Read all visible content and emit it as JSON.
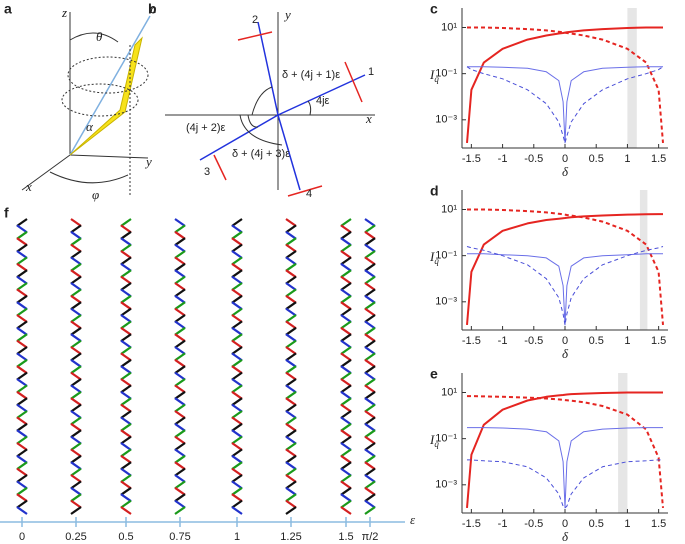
{
  "figure": {
    "panel_a": {
      "label": "a",
      "z": "z",
      "n": "n",
      "theta": "θ",
      "alpha": "α",
      "y": "y",
      "x": "x",
      "phi": "φ"
    },
    "panel_b": {
      "label": "b",
      "y": "y",
      "x": "x",
      "v1": "1",
      "v2": "2",
      "v3": "3",
      "v4": "4",
      "ang1": "δ + (4j + 1)ε",
      "ang0": "4jε",
      "ang2": "(4j + 2)ε",
      "ang3": "δ + (4j + 3)ε"
    },
    "panel_f": {
      "label": "f",
      "axis_label": "ε",
      "ticks": [
        "0",
        "0.25",
        "0.5",
        "0.75",
        "1",
        "1.25",
        "1.5",
        "π/2"
      ]
    }
  },
  "chart_data": [
    {
      "type": "line",
      "label": "c",
      "ylabel": {
        "main": "I",
        "sub": "q"
      },
      "xlabel": "δ",
      "log_y": true,
      "xlim": [
        -1.65,
        1.65
      ],
      "ylim": [
        6e-05,
        70
      ],
      "xticks": [
        -1.5,
        -1,
        -0.5,
        0,
        0.5,
        1,
        1.5
      ],
      "yticks": [
        {
          "value": 10,
          "label": "10¹"
        },
        {
          "value": 0.1,
          "label": "10⁻¹"
        },
        {
          "value": 0.001,
          "label": "10⁻³"
        }
      ],
      "shade": [
        1.0,
        1.15
      ],
      "x": [
        -1.57,
        -1.5,
        -1.3,
        -1.0,
        -0.6,
        -0.3,
        -0.1,
        -0.03,
        0,
        0.03,
        0.1,
        0.3,
        0.6,
        1.0,
        1.3,
        1.5,
        1.57
      ],
      "series": [
        {
          "color": "#e52521",
          "dash": false,
          "values": [
            0.0001,
            0.02,
            0.3,
            1.2,
            3,
            4.5,
            5.5,
            5.8,
            6,
            6.2,
            6.5,
            7.5,
            8.5,
            9.5,
            10,
            10,
            10
          ]
        },
        {
          "color": "#e52521",
          "dash": true,
          "values": [
            10,
            10,
            10,
            9.5,
            8.5,
            7.5,
            6.5,
            6.2,
            6,
            5.8,
            5.5,
            4.5,
            3,
            1.2,
            0.3,
            0.02,
            0.0001
          ]
        },
        {
          "color": "#6a6fe8",
          "dash": false,
          "values": [
            0.2,
            0.2,
            0.2,
            0.19,
            0.17,
            0.12,
            0.05,
            0.006,
            0.0001,
            0.006,
            0.05,
            0.12,
            0.17,
            0.19,
            0.2,
            0.2,
            0.2
          ]
        },
        {
          "color": "#4a4fd8",
          "dash": true,
          "values": [
            0.2,
            0.15,
            0.1,
            0.06,
            0.02,
            0.005,
            0.0008,
            0.0002,
            0.0001,
            0.0002,
            0.0008,
            0.005,
            0.02,
            0.06,
            0.1,
            0.15,
            0.2
          ]
        }
      ]
    },
    {
      "type": "line",
      "label": "d",
      "ylabel": {
        "main": "I",
        "sub": "q"
      },
      "xlabel": "δ",
      "log_y": true,
      "xlim": [
        -1.65,
        1.65
      ],
      "ylim": [
        6e-05,
        70
      ],
      "xticks": [
        -1.5,
        -1,
        -0.5,
        0,
        0.5,
        1,
        1.5
      ],
      "yticks": [
        {
          "value": 10,
          "label": "10¹"
        },
        {
          "value": 0.1,
          "label": "10⁻¹"
        },
        {
          "value": 0.001,
          "label": "10⁻³"
        }
      ],
      "shade": [
        1.2,
        1.32
      ],
      "x": [
        -1.57,
        -1.5,
        -1.3,
        -1.0,
        -0.6,
        -0.3,
        -0.1,
        -0.03,
        0,
        0.03,
        0.1,
        0.3,
        0.6,
        1.0,
        1.3,
        1.5,
        1.57
      ],
      "series": [
        {
          "color": "#e52521",
          "dash": false,
          "values": [
            0.0001,
            0.02,
            0.3,
            1.2,
            2.5,
            3.5,
            4,
            4.2,
            4.3,
            4.4,
            4.6,
            5,
            5.5,
            6,
            6.2,
            6.3,
            6.3
          ]
        },
        {
          "color": "#e52521",
          "dash": true,
          "values": [
            10,
            10,
            10,
            9.5,
            8.5,
            7.5,
            6.5,
            6.2,
            6,
            5.8,
            5.5,
            4.5,
            3,
            1.2,
            0.3,
            0.02,
            0.0001
          ]
        },
        {
          "color": "#6a6fe8",
          "dash": false,
          "values": [
            0.12,
            0.12,
            0.12,
            0.11,
            0.1,
            0.08,
            0.035,
            0.005,
            0.0001,
            0.005,
            0.035,
            0.08,
            0.1,
            0.11,
            0.12,
            0.12,
            0.12
          ]
        },
        {
          "color": "#4a4fd8",
          "dash": true,
          "values": [
            0.25,
            0.22,
            0.17,
            0.1,
            0.04,
            0.01,
            0.0015,
            0.0003,
            0.0001,
            0.0003,
            0.0015,
            0.01,
            0.04,
            0.1,
            0.17,
            0.22,
            0.25
          ]
        }
      ]
    },
    {
      "type": "line",
      "label": "e",
      "ylabel": {
        "main": "I",
        "sub": "q"
      },
      "xlabel": "δ",
      "log_y": true,
      "xlim": [
        -1.65,
        1.65
      ],
      "ylim": [
        6e-05,
        70
      ],
      "xticks": [
        -1.5,
        -1,
        -0.5,
        0,
        0.5,
        1,
        1.5
      ],
      "yticks": [
        {
          "value": 10,
          "label": "10¹"
        },
        {
          "value": 0.1,
          "label": "10⁻¹"
        },
        {
          "value": 0.001,
          "label": "10⁻³"
        }
      ],
      "shade": [
        0.85,
        1.0
      ],
      "x": [
        -1.57,
        -1.5,
        -1.3,
        -1.0,
        -0.6,
        -0.3,
        -0.1,
        -0.03,
        0,
        0.03,
        0.1,
        0.3,
        0.6,
        1.0,
        1.3,
        1.5,
        1.57
      ],
      "series": [
        {
          "color": "#e52521",
          "dash": false,
          "values": [
            0.0001,
            0.02,
            0.4,
            1.8,
            4.5,
            6.5,
            7.5,
            7.8,
            8,
            8.2,
            8.5,
            9,
            9.5,
            10,
            10,
            10,
            10
          ]
        },
        {
          "color": "#e52521",
          "dash": true,
          "values": [
            7,
            7,
            6.8,
            6.5,
            6,
            5.5,
            5,
            4.8,
            4.7,
            4.6,
            4.4,
            3.8,
            2.6,
            1.1,
            0.25,
            0.015,
            0.0001
          ]
        },
        {
          "color": "#6a6fe8",
          "dash": false,
          "values": [
            0.3,
            0.3,
            0.3,
            0.29,
            0.26,
            0.2,
            0.08,
            0.01,
            0.0001,
            0.01,
            0.08,
            0.2,
            0.26,
            0.29,
            0.3,
            0.3,
            0.3
          ]
        },
        {
          "color": "#4a4fd8",
          "dash": true,
          "values": [
            0.012,
            0.012,
            0.011,
            0.01,
            0.006,
            0.002,
            0.0004,
            0.00012,
            0.0001,
            0.00012,
            0.0004,
            0.002,
            0.006,
            0.01,
            0.011,
            0.012,
            0.012
          ]
        }
      ]
    }
  ]
}
